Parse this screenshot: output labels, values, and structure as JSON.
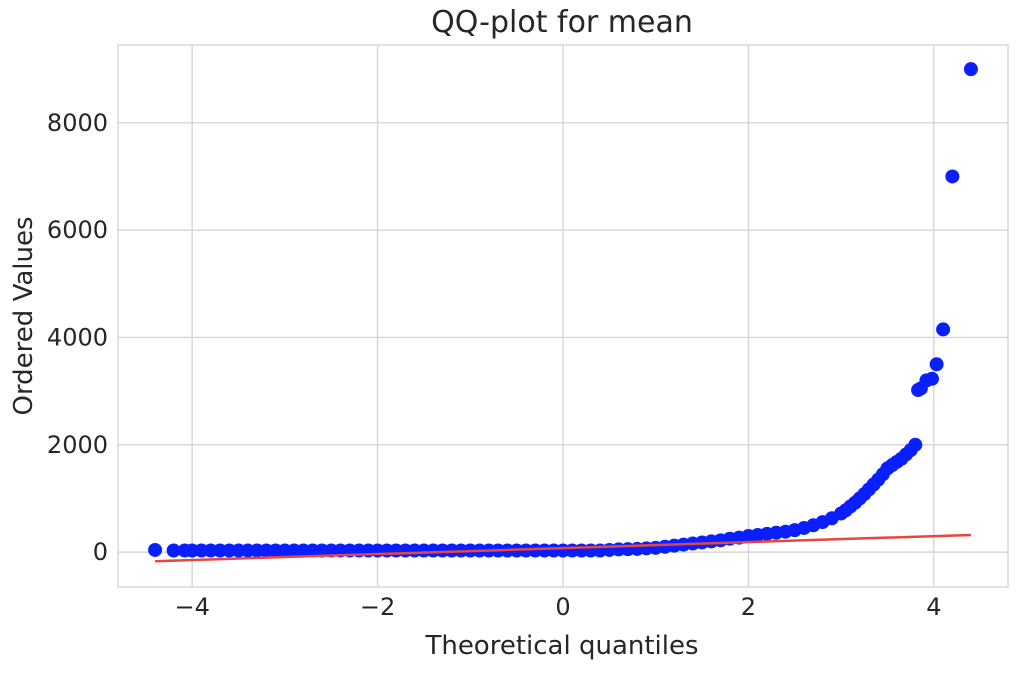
{
  "chart_data": {
    "type": "scatter",
    "title": "QQ-plot for mean",
    "xlabel": "Theoretical quantiles",
    "ylabel": "Ordered Values",
    "xlim": [
      -4.8,
      4.8
    ],
    "ylim": [
      -650,
      9450
    ],
    "x_ticks": [
      -4,
      -2,
      0,
      2,
      4
    ],
    "x_tick_labels": [
      "−4",
      "−2",
      "0",
      "2",
      "4"
    ],
    "y_ticks": [
      0,
      2000,
      4000,
      6000,
      8000
    ],
    "y_tick_labels": [
      "0",
      "2000",
      "4000",
      "6000",
      "8000"
    ],
    "grid": true,
    "legend": "none",
    "colors": {
      "points": "#0a1fff",
      "fit_line": "#e8453c",
      "grid": "#d6d6d6",
      "text": "#262626"
    },
    "series": [
      {
        "kind": "points",
        "x": [
          -4.4,
          -4.2,
          -4.08,
          -4.0,
          -3.9,
          -3.8,
          -3.7,
          -3.6,
          -3.5,
          -3.4,
          -3.3,
          -3.2,
          -3.1,
          -3.0,
          -2.9,
          -2.8,
          -2.7,
          -2.6,
          -2.5,
          -2.4,
          -2.3,
          -2.2,
          -2.1,
          -2.0,
          -1.9,
          -1.8,
          -1.7,
          -1.6,
          -1.5,
          -1.4,
          -1.3,
          -1.2,
          -1.1,
          -1.0,
          -0.9,
          -0.8,
          -0.7,
          -0.6,
          -0.5,
          -0.4,
          -0.3,
          -0.2,
          -0.1,
          0.0,
          0.1,
          0.2,
          0.3,
          0.4,
          0.5,
          0.6,
          0.7,
          0.8,
          0.9,
          1.0,
          1.1,
          1.2,
          1.3,
          1.4,
          1.5,
          1.6,
          1.7,
          1.8,
          1.9,
          2.0,
          2.1,
          2.2,
          2.3,
          2.4,
          2.5,
          2.6,
          2.7,
          2.8,
          2.9,
          3.0,
          3.05,
          3.1,
          3.15,
          3.2,
          3.25,
          3.3,
          3.35,
          3.4,
          3.45,
          3.5,
          3.55,
          3.6,
          3.65,
          3.7,
          3.75,
          3.8,
          3.83,
          3.86,
          3.92,
          3.98,
          4.03,
          4.1,
          4.2,
          4.4
        ],
        "y": [
          40,
          30,
          30,
          30,
          30,
          30,
          30,
          30,
          30,
          30,
          30,
          30,
          30,
          30,
          30,
          30,
          30,
          30,
          30,
          30,
          30,
          30,
          30,
          30,
          30,
          30,
          30,
          30,
          30,
          30,
          30,
          30,
          30,
          30,
          30,
          30,
          30,
          30,
          30,
          30,
          30,
          30,
          30,
          30,
          30,
          30,
          30,
          30,
          40,
          50,
          55,
          60,
          70,
          80,
          100,
          120,
          140,
          160,
          180,
          200,
          220,
          250,
          270,
          300,
          320,
          340,
          360,
          380,
          410,
          450,
          500,
          560,
          630,
          720,
          780,
          850,
          920,
          1000,
          1080,
          1170,
          1260,
          1350,
          1450,
          1560,
          1620,
          1680,
          1740,
          1820,
          1900,
          2000,
          3020,
          3050,
          3200,
          3230,
          3500,
          4150,
          7000,
          9000
        ]
      },
      {
        "kind": "line",
        "x": [
          -4.4,
          4.4
        ],
        "y": [
          -170,
          320
        ]
      }
    ]
  }
}
